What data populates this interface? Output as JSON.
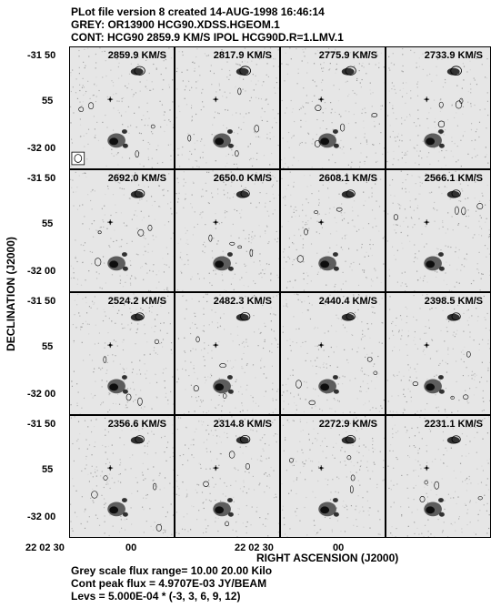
{
  "header": {
    "line1": "PLot file version 8  created 14-AUG-1998 16:46:14",
    "line2": "GREY: OR13900  HCG90.XDSS.HGEOM.1",
    "line3": "CONT: HCG90  2859.9 KM/S  IPOL  HCG90D.R=1.LMV.1"
  },
  "axes": {
    "ylabel": "DECLINATION (J2000)",
    "xlabel": "RIGHT ASCENSION (J2000)",
    "yticks": [
      "-31 50",
      "55",
      "-32 00"
    ],
    "xticks": [
      "22 02 30",
      "00"
    ]
  },
  "panels": [
    {
      "velocity": "2859.9 KM/S",
      "contour": [
        0.6,
        0.88,
        0.22
      ]
    },
    {
      "velocity": "2817.9 KM/S",
      "contour": [
        0.62,
        0.8,
        0.22
      ]
    },
    {
      "velocity": "2775.9 KM/S",
      "contour": [
        0.6,
        0.62,
        0.2
      ]
    },
    {
      "velocity": "2733.9 KM/S",
      "contour": [
        0.62,
        0.6,
        0.2
      ]
    },
    {
      "velocity": "2692.0 KM/S",
      "contour": [
        0.55,
        0.2,
        0.22
      ]
    },
    {
      "velocity": "2650.0 KM/S",
      "contour": [
        0.5,
        0.2,
        0.2
      ]
    },
    {
      "velocity": "2608.1 KM/S",
      "contour": [
        0.5,
        0.2,
        0.22
      ]
    },
    {
      "velocity": "2566.1 KM/S",
      "contour": [
        0.5,
        0.2,
        0.2
      ]
    },
    {
      "velocity": "2524.2 KM/S",
      "contour": [
        0.5,
        0.2,
        0.2
      ]
    },
    {
      "velocity": "2482.3 KM/S",
      "contour": [
        0.55,
        0.22,
        0.22
      ]
    },
    {
      "velocity": "2440.4 KM/S",
      "contour": [
        0.5,
        0.2,
        0.2
      ]
    },
    {
      "velocity": "2398.5 KM/S",
      "contour": [
        0.5,
        0.2,
        0.2
      ]
    },
    {
      "velocity": "2356.6 KM/S",
      "contour": [
        0.52,
        0.2,
        0.22
      ]
    },
    {
      "velocity": "2314.8 KM/S",
      "contour": [
        0.55,
        0.22,
        0.22
      ]
    },
    {
      "velocity": "2272.9 KM/S",
      "contour": [
        0.55,
        0.22,
        0.22
      ]
    },
    {
      "velocity": "2231.1 KM/S",
      "contour": [
        0.5,
        0.2,
        0.2
      ]
    }
  ],
  "footer": {
    "line1": "Grey scale flux range= 10.00 20.00 Kilo",
    "line2": "Cont peak flux =  4.9707E-03 JY/BEAM",
    "line3": "Levs = 5.000E-04 * (-3, 3, 6, 9, 12)"
  }
}
